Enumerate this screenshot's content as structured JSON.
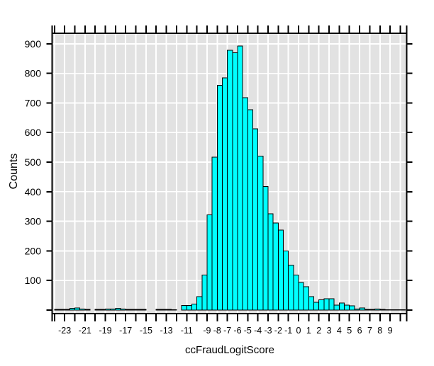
{
  "chart_data": {
    "type": "bar",
    "subtype": "histogram",
    "title": "",
    "xlabel": "ccFraudLogitScore",
    "ylabel": "Counts",
    "bin_start": -24,
    "bin_width": 0.5,
    "counts": [
      2,
      2,
      2,
      6,
      7,
      3,
      2,
      0,
      2,
      2,
      3,
      3,
      6,
      3,
      2,
      2,
      2,
      2,
      0,
      0,
      2,
      2,
      2,
      1,
      0,
      15,
      15,
      20,
      46,
      119,
      322,
      517,
      760,
      785,
      878,
      870,
      892,
      718,
      677,
      613,
      521,
      418,
      326,
      294,
      270,
      200,
      152,
      119,
      93,
      79,
      45,
      26,
      35,
      38,
      38,
      17,
      24,
      17,
      14,
      3,
      7,
      2,
      2,
      4,
      2,
      1,
      1,
      1,
      1
    ],
    "xlim": [
      -24.23,
      10.63
    ],
    "ylim": [
      -12,
      935.6
    ],
    "x_tick_step": 1,
    "x_tick_range": [
      -24,
      10
    ],
    "x_tick_labels": [
      {
        "value": -23,
        "label": "-23"
      },
      {
        "value": -21,
        "label": "-21"
      },
      {
        "value": -19,
        "label": "-19"
      },
      {
        "value": -17,
        "label": "-17"
      },
      {
        "value": -15,
        "label": "-15"
      },
      {
        "value": -13,
        "label": "-13"
      },
      {
        "value": -11,
        "label": "-11"
      },
      {
        "value": -9,
        "label": "-9"
      },
      {
        "value": -8,
        "label": "-8"
      },
      {
        "value": -7,
        "label": "-7"
      },
      {
        "value": -6,
        "label": "-6"
      },
      {
        "value": -5,
        "label": "-5"
      },
      {
        "value": -4,
        "label": "-4"
      },
      {
        "value": -3,
        "label": "-3"
      },
      {
        "value": -2,
        "label": "-2"
      },
      {
        "value": -1,
        "label": "-1"
      },
      {
        "value": 0,
        "label": "0"
      },
      {
        "value": 1,
        "label": "1"
      },
      {
        "value": 2,
        "label": "2"
      },
      {
        "value": 3,
        "label": "3"
      },
      {
        "value": 4,
        "label": "4"
      },
      {
        "value": 5,
        "label": "5"
      },
      {
        "value": 6,
        "label": "6"
      },
      {
        "value": 7,
        "label": "7"
      },
      {
        "value": 8,
        "label": "8"
      },
      {
        "value": 9,
        "label": "9"
      }
    ],
    "y_ticks": [
      {
        "value": 0,
        "label": ""
      },
      {
        "value": 100,
        "label": "100"
      },
      {
        "value": 200,
        "label": "200"
      },
      {
        "value": 300,
        "label": "300"
      },
      {
        "value": 400,
        "label": "400"
      },
      {
        "value": 500,
        "label": "500"
      },
      {
        "value": 600,
        "label": "600"
      },
      {
        "value": 700,
        "label": "700"
      },
      {
        "value": 800,
        "label": "800"
      },
      {
        "value": 900,
        "label": "900"
      }
    ],
    "grid": true,
    "legend": false,
    "colors": {
      "bar_fill": "#00FFFF",
      "bar_border": "#000000",
      "panel_bg": "#E2E2E2",
      "grid": "#FFFFFF",
      "axis": "#000000",
      "page_bg": "#FFFFFF"
    }
  }
}
